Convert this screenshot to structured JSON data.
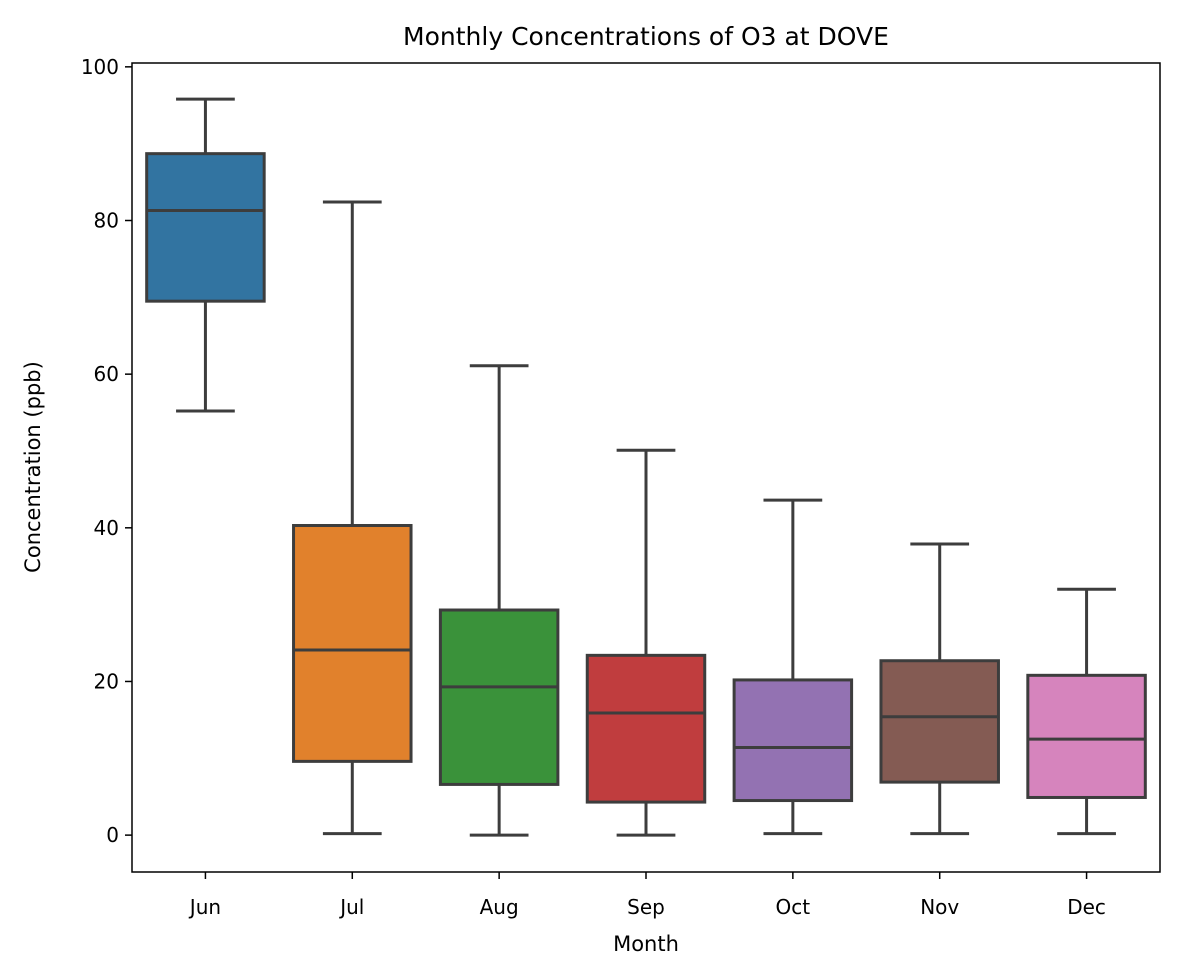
{
  "chart_data": {
    "type": "box",
    "title": "Monthly Concentrations of O3 at DOVE",
    "xlabel": "Month",
    "ylabel": "Concentration (ppb)",
    "categories": [
      "Jun",
      "Jul",
      "Aug",
      "Sep",
      "Oct",
      "Nov",
      "Dec"
    ],
    "colors": [
      "#3274a1",
      "#e1812c",
      "#3a923a",
      "#c03d3e",
      "#9372b2",
      "#845b53",
      "#d684bd"
    ],
    "box_edge_color": "#3d3d3d",
    "ylim": [
      -4.8,
      100.5
    ],
    "yticks": [
      0,
      20,
      40,
      60,
      80,
      100
    ],
    "grid": false,
    "legend": "none",
    "boxes": [
      {
        "min": 55.2,
        "q1": 69.5,
        "median": 81.3,
        "q3": 88.7,
        "max": 95.8
      },
      {
        "min": 0.2,
        "q1": 9.6,
        "median": 24.1,
        "q3": 40.3,
        "max": 82.4
      },
      {
        "min": 0.0,
        "q1": 6.6,
        "median": 19.3,
        "q3": 29.3,
        "max": 61.1
      },
      {
        "min": 0.0,
        "q1": 4.3,
        "median": 15.9,
        "q3": 23.4,
        "max": 50.1
      },
      {
        "min": 0.2,
        "q1": 4.5,
        "median": 11.4,
        "q3": 20.2,
        "max": 43.6
      },
      {
        "min": 0.2,
        "q1": 6.9,
        "median": 15.4,
        "q3": 22.7,
        "max": 37.9
      },
      {
        "min": 0.2,
        "q1": 4.9,
        "median": 12.5,
        "q3": 20.8,
        "max": 32.0
      }
    ]
  }
}
